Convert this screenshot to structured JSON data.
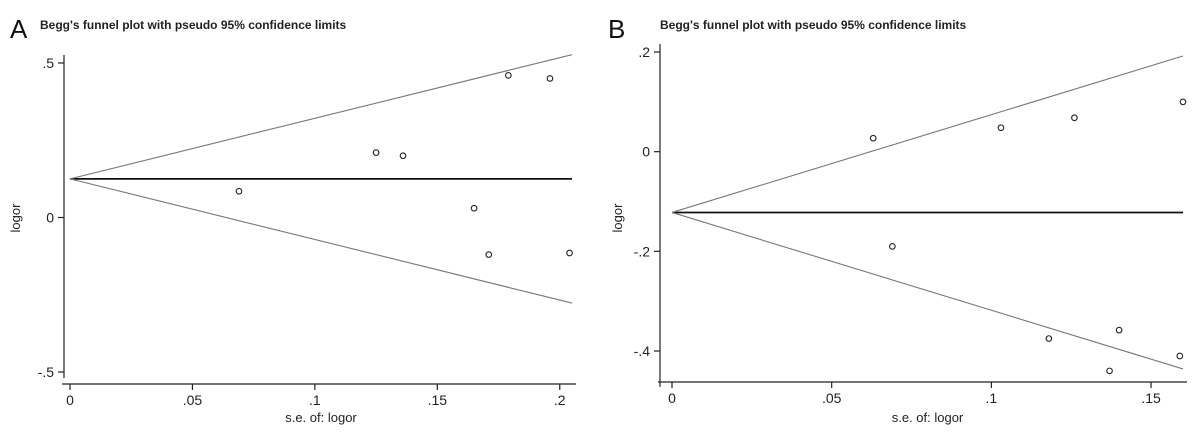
{
  "chart_data": [
    {
      "panel": "A",
      "type": "scatter",
      "title": "Begg's funnel plot with pseudo 95% confidence limits",
      "xlabel": "s.e. of: logor",
      "ylabel": "logor",
      "xlim": [
        0,
        0.205
      ],
      "ylim": [
        -0.5,
        0.5
      ],
      "xticks": [
        0,
        0.05,
        0.1,
        0.15,
        0.2
      ],
      "xtick_labels": [
        "0",
        ".05",
        ".1",
        ".15",
        ".2"
      ],
      "yticks": [
        -0.5,
        0,
        0.5
      ],
      "ytick_labels": [
        "-.5",
        "0",
        ".5"
      ],
      "pooled_estimate": 0.125,
      "lines": [
        {
          "role": "pooled",
          "points": [
            [
              0,
              0.125
            ],
            [
              0.205,
              0.125
            ]
          ]
        },
        {
          "role": "upper-limit",
          "points": [
            [
              0,
              0.125
            ],
            [
              0.205,
              0.527
            ]
          ]
        },
        {
          "role": "lower-limit",
          "points": [
            [
              0,
              0.125
            ],
            [
              0.205,
              -0.277
            ]
          ]
        }
      ],
      "points": [
        {
          "x": 0.069,
          "y": 0.085
        },
        {
          "x": 0.125,
          "y": 0.21
        },
        {
          "x": 0.136,
          "y": 0.2
        },
        {
          "x": 0.165,
          "y": 0.03
        },
        {
          "x": 0.171,
          "y": -0.12
        },
        {
          "x": 0.179,
          "y": 0.46
        },
        {
          "x": 0.196,
          "y": 0.45
        },
        {
          "x": 0.204,
          "y": -0.115
        }
      ]
    },
    {
      "panel": "B",
      "type": "scatter",
      "title": "Begg's funnel plot with pseudo 95% confidence limits",
      "xlabel": "s.e. of: logor",
      "ylabel": "logor",
      "xlim": [
        0,
        0.16
      ],
      "ylim": [
        -0.46,
        0.2
      ],
      "xticks": [
        0,
        0.05,
        0.1,
        0.15
      ],
      "xtick_labels": [
        "0",
        ".05",
        ".1",
        ".15"
      ],
      "yticks": [
        -0.4,
        -0.2,
        0,
        0.2
      ],
      "ytick_labels": [
        "-.4",
        "-.2",
        "0",
        ".2"
      ],
      "pooled_estimate": -0.122,
      "lines": [
        {
          "role": "pooled",
          "points": [
            [
              0,
              -0.122
            ],
            [
              0.16,
              -0.122
            ]
          ]
        },
        {
          "role": "upper-limit",
          "points": [
            [
              0,
              -0.122
            ],
            [
              0.16,
              0.192
            ]
          ]
        },
        {
          "role": "lower-limit",
          "points": [
            [
              0,
              -0.122
            ],
            [
              0.16,
              -0.436
            ]
          ]
        }
      ],
      "points": [
        {
          "x": 0.063,
          "y": 0.027
        },
        {
          "x": 0.069,
          "y": -0.19
        },
        {
          "x": 0.103,
          "y": 0.048
        },
        {
          "x": 0.118,
          "y": -0.375
        },
        {
          "x": 0.126,
          "y": 0.068
        },
        {
          "x": 0.137,
          "y": -0.44
        },
        {
          "x": 0.14,
          "y": -0.358
        },
        {
          "x": 0.159,
          "y": -0.41
        },
        {
          "x": 0.16,
          "y": 0.1
        }
      ]
    }
  ],
  "panels": [
    {
      "letter": "A",
      "title": "Begg's funnel plot with pseudo 95% confidence limits"
    },
    {
      "letter": "B",
      "title": "Begg's funnel plot with pseudo 95% confidence limits"
    }
  ],
  "colors": {
    "axis": "#222222",
    "pooled_line": "#111111",
    "limit_line": "#777777",
    "marker": "#222222"
  }
}
